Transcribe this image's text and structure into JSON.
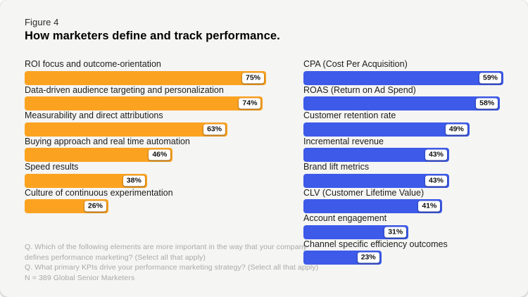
{
  "figure_label": "Figure 4",
  "title": "How marketers define and track performance.",
  "colors": {
    "card_background": "#F5F5F3",
    "left_bar": "#FBA321",
    "right_bar": "#3D5AE9",
    "value_chip_background": "#FFFFFF",
    "value_chip_text": "#111111",
    "footnote_text": "#A9A9A7"
  },
  "chart_data": {
    "type": "bar",
    "orientation": "horizontal",
    "value_format": "percent",
    "title": "How marketers define and track performance.",
    "figure_label": "Figure 4",
    "grid": false,
    "axes_shown": false,
    "value_labels": "white chip at right end of each bar",
    "series": [
      {
        "name": "Elements important to how company defines performance marketing",
        "color": "#FBA321",
        "position": "left-column",
        "categories": [
          "ROI focus and outcome-orientation",
          "Data-driven audience targeting and personalization",
          "Measurability and direct attributions",
          "Buying approach and real time automation",
          "Speed results",
          "Culture of continuous experimentation"
        ],
        "values": [
          75,
          74,
          63,
          46,
          38,
          26
        ]
      },
      {
        "name": "Primary KPIs driving performance marketing strategy",
        "color": "#3D5AE9",
        "position": "right-column",
        "categories": [
          "CPA (Cost Per Acquisition)",
          "ROAS (Return on Ad Spend)",
          "Customer retention rate",
          "Incremental revenue",
          "Brand lift metrics",
          "CLV (Customer Lifetime Value)",
          "Account engagement",
          "Channel specific efficiency outcomes"
        ],
        "values": [
          59,
          58,
          49,
          43,
          43,
          41,
          31,
          23
        ]
      }
    ]
  },
  "footnotes": [
    "Q. Which of the following elements are more important in the way that your company",
    "defines performance marketing? (Select all that apply)",
    "Q. What primary KPIs drive your performance marketing strategy? (Select all that apply)",
    "N = 389 Global Senior Marketers"
  ]
}
